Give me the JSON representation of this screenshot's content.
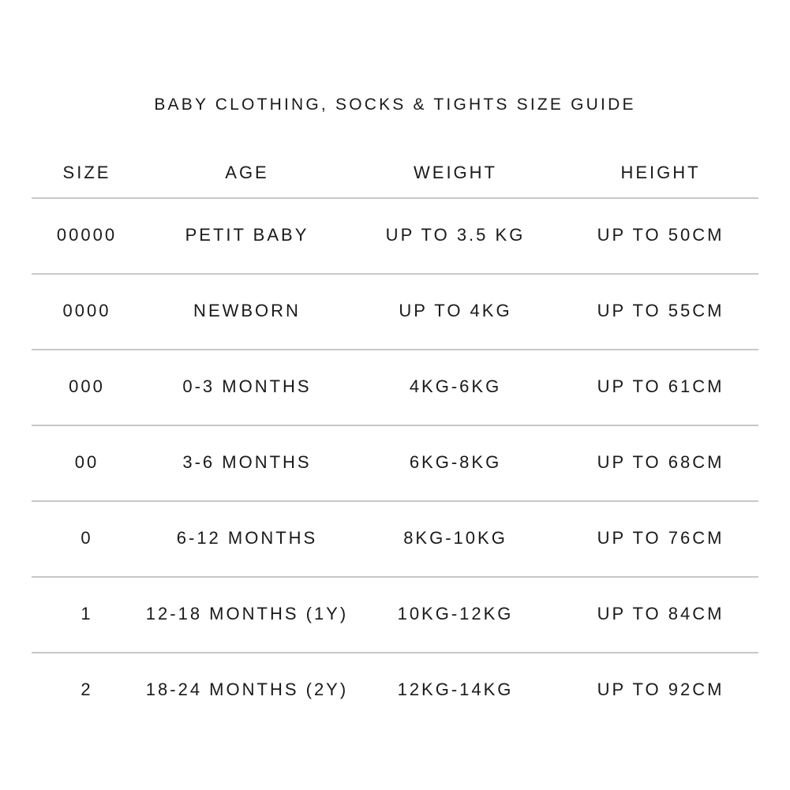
{
  "title": "BABY CLOTHING, SOCKS & TIGHTS SIZE GUIDE",
  "headers": [
    "SIZE",
    "AGE",
    "WEIGHT",
    "HEIGHT"
  ],
  "rows": [
    [
      "00000",
      "PETIT BABY",
      "UP TO 3.5 KG",
      "UP TO 50CM"
    ],
    [
      "0000",
      "NEWBORN",
      "UP TO 4KG",
      "UP TO 55CM"
    ],
    [
      "000",
      "0-3 MONTHS",
      "4KG-6KG",
      "UP TO 61CM"
    ],
    [
      "00",
      "3-6 MONTHS",
      "6KG-8KG",
      "UP TO 68CM"
    ],
    [
      "0",
      "6-12 MONTHS",
      "8KG-10KG",
      "UP TO 76CM"
    ],
    [
      "1",
      "12-18 MONTHS (1Y)",
      "10KG-12KG",
      "UP TO 84CM"
    ],
    [
      "2",
      "18-24 MONTHS (2Y)",
      "12KG-14KG",
      "UP TO 92CM"
    ]
  ]
}
